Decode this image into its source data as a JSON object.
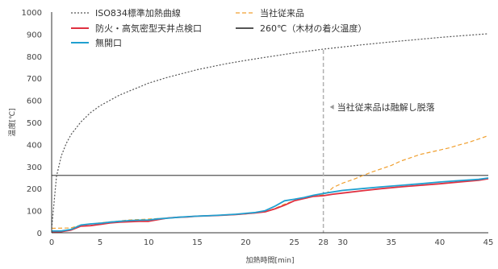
{
  "chart_data": {
    "type": "line",
    "xlabel": "加熱時間[min]",
    "ylabel": "温度[℃]",
    "xlim": [
      0,
      45
    ],
    "ylim": [
      0,
      1000
    ],
    "x_ticks": [
      "0",
      "5",
      "10",
      "15",
      "20",
      "25",
      "28",
      "30",
      "35",
      "40",
      "45"
    ],
    "y_ticks": [
      "0",
      "100",
      "200",
      "300",
      "400",
      "500",
      "600",
      "700",
      "800",
      "900",
      "1000"
    ],
    "series": [
      {
        "name": "ISO834標準加熱曲線",
        "color": "#555555",
        "dash": "dotted",
        "points": [
          [
            0,
            20
          ],
          [
            0.5,
            256
          ],
          [
            1,
            349
          ],
          [
            1.5,
            404
          ],
          [
            2,
            445
          ],
          [
            3,
            502
          ],
          [
            4,
            544
          ],
          [
            5,
            576
          ],
          [
            7,
            624
          ],
          [
            10,
            678
          ],
          [
            12,
            705
          ],
          [
            15,
            739
          ],
          [
            18,
            766
          ],
          [
            20,
            781
          ],
          [
            22,
            795
          ],
          [
            25,
            815
          ],
          [
            28,
            832
          ],
          [
            30,
            842
          ],
          [
            32,
            852
          ],
          [
            35,
            865
          ],
          [
            38,
            877
          ],
          [
            40,
            885
          ],
          [
            42,
            892
          ],
          [
            45,
            902
          ]
        ]
      },
      {
        "name": "当社従来品",
        "color": "#f0a030",
        "dash": "dashed",
        "points": [
          [
            0,
            20
          ],
          [
            2,
            22
          ],
          [
            3,
            35
          ],
          [
            5,
            45
          ],
          [
            8,
            58
          ],
          [
            10,
            62
          ],
          [
            12,
            67
          ],
          [
            15,
            75
          ],
          [
            18,
            80
          ],
          [
            20,
            85
          ],
          [
            22,
            95
          ],
          [
            23,
            110
          ],
          [
            24,
            130
          ],
          [
            25,
            145
          ],
          [
            26,
            155
          ],
          [
            27,
            165
          ],
          [
            28,
            172
          ],
          [
            28.5,
            185
          ],
          [
            29,
            205
          ],
          [
            30,
            225
          ],
          [
            31,
            240
          ],
          [
            32,
            258
          ],
          [
            33,
            275
          ],
          [
            34,
            290
          ],
          [
            35,
            305
          ],
          [
            36,
            325
          ],
          [
            37,
            340
          ],
          [
            38,
            355
          ],
          [
            39,
            365
          ],
          [
            40,
            375
          ],
          [
            41,
            385
          ],
          [
            42,
            398
          ],
          [
            43,
            410
          ],
          [
            44,
            425
          ],
          [
            45,
            440
          ]
        ]
      },
      {
        "name": "防火・高気密型天井点検口",
        "color": "#e03040",
        "dash": "solid",
        "points": [
          [
            0,
            5
          ],
          [
            1,
            5
          ],
          [
            2,
            12
          ],
          [
            3,
            30
          ],
          [
            4,
            32
          ],
          [
            5,
            38
          ],
          [
            6,
            44
          ],
          [
            7,
            48
          ],
          [
            8,
            50
          ],
          [
            9,
            52
          ],
          [
            10,
            52
          ],
          [
            11,
            60
          ],
          [
            12,
            67
          ],
          [
            13,
            70
          ],
          [
            14,
            72
          ],
          [
            15,
            75
          ],
          [
            17,
            78
          ],
          [
            19,
            83
          ],
          [
            20,
            86
          ],
          [
            21,
            90
          ],
          [
            22,
            95
          ],
          [
            23,
            108
          ],
          [
            24,
            125
          ],
          [
            25,
            145
          ],
          [
            26,
            155
          ],
          [
            27,
            165
          ],
          [
            28,
            168
          ],
          [
            29,
            175
          ],
          [
            30,
            180
          ],
          [
            32,
            190
          ],
          [
            34,
            200
          ],
          [
            36,
            208
          ],
          [
            38,
            215
          ],
          [
            40,
            222
          ],
          [
            42,
            230
          ],
          [
            44,
            238
          ],
          [
            45,
            245
          ]
        ]
      },
      {
        "name": "無開口",
        "color": "#20a0d0",
        "dash": "solid",
        "points": [
          [
            0,
            8
          ],
          [
            1,
            8
          ],
          [
            2,
            15
          ],
          [
            3,
            35
          ],
          [
            4,
            40
          ],
          [
            5,
            43
          ],
          [
            6,
            48
          ],
          [
            7,
            52
          ],
          [
            8,
            55
          ],
          [
            9,
            57
          ],
          [
            10,
            58
          ],
          [
            11,
            63
          ],
          [
            12,
            66
          ],
          [
            13,
            70
          ],
          [
            14,
            73
          ],
          [
            15,
            75
          ],
          [
            17,
            79
          ],
          [
            19,
            84
          ],
          [
            20,
            88
          ],
          [
            21,
            92
          ],
          [
            22,
            100
          ],
          [
            23,
            120
          ],
          [
            24,
            145
          ],
          [
            25,
            152
          ],
          [
            26,
            160
          ],
          [
            27,
            170
          ],
          [
            28,
            178
          ],
          [
            29,
            185
          ],
          [
            30,
            192
          ],
          [
            32,
            200
          ],
          [
            34,
            208
          ],
          [
            36,
            215
          ],
          [
            38,
            222
          ],
          [
            40,
            230
          ],
          [
            42,
            236
          ],
          [
            44,
            242
          ],
          [
            45,
            248
          ]
        ]
      }
    ],
    "reference_lines": {
      "horizontal": {
        "label": "260℃（木材の着火温度）",
        "y": 260,
        "color": "#555555"
      },
      "vertical": {
        "x": 28,
        "color": "#b0b0b0"
      }
    },
    "annotation": {
      "text": "当社従来品は融解し脱落",
      "x": 28,
      "y": 570
    },
    "legend_placement": "top-left",
    "grid": false
  }
}
